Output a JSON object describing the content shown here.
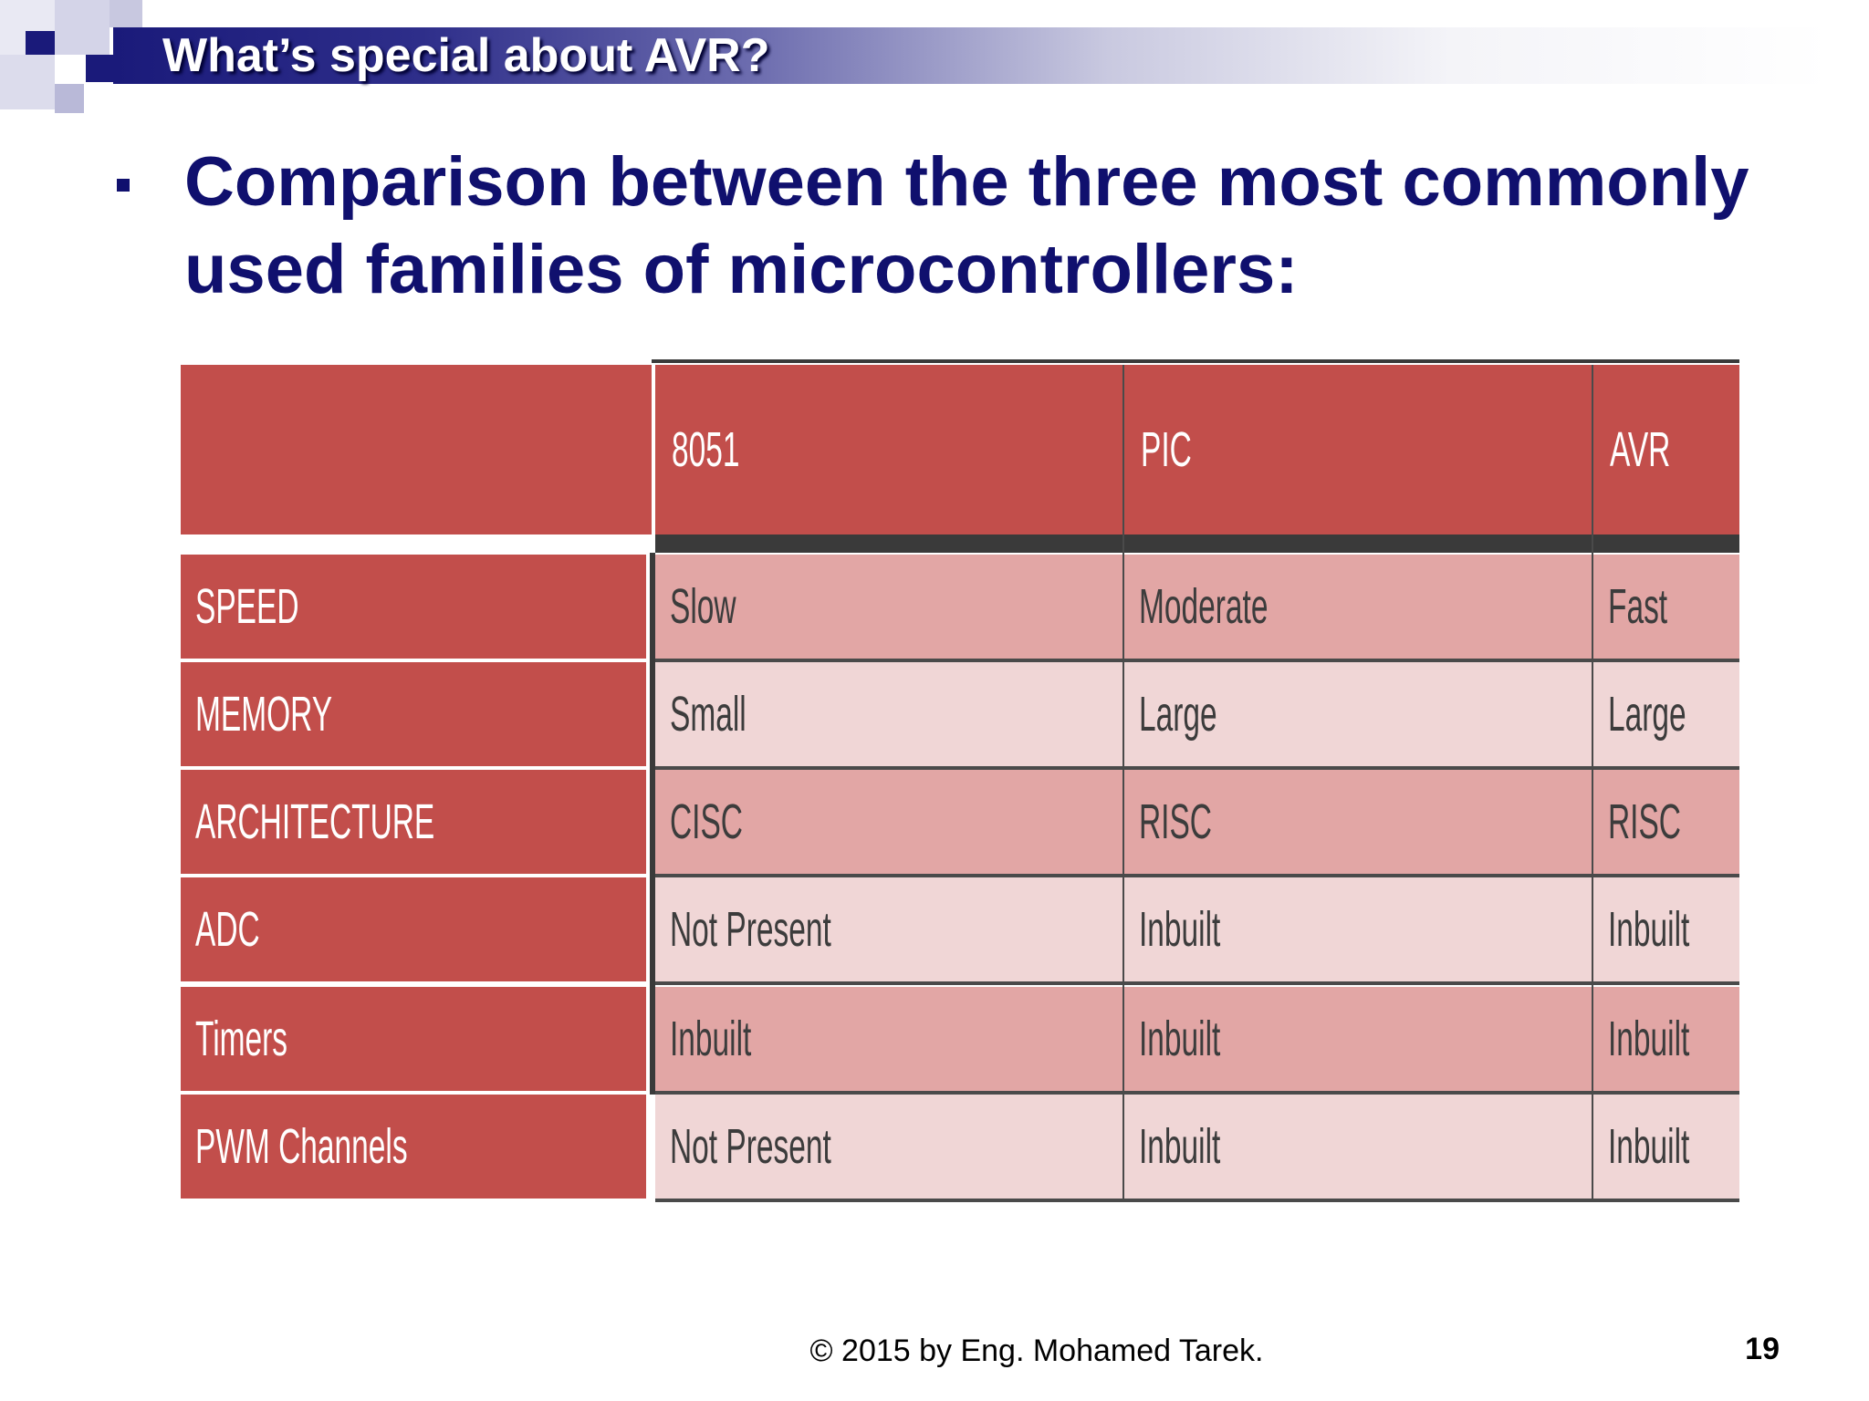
{
  "slide": {
    "title": "What’s special about AVR?",
    "bullet": "Comparison between the three most commonly used families of microcontrollers:",
    "footer": "© 2015 by Eng. Mohamed Tarek.",
    "page_number": "19"
  },
  "table": {
    "headers": [
      "",
      "8051",
      "PIC",
      "AVR"
    ],
    "rows": [
      {
        "label": "SPEED",
        "values": [
          "Slow",
          "Moderate",
          "Fast"
        ]
      },
      {
        "label": "MEMORY",
        "values": [
          "Small",
          "Large",
          "Large"
        ]
      },
      {
        "label": "ARCHITECTURE",
        "values": [
          "CISC",
          "RISC",
          "RISC"
        ]
      },
      {
        "label": "ADC",
        "values": [
          "Not Present",
          "Inbuilt",
          "Inbuilt"
        ]
      },
      {
        "label": "Timers",
        "values": [
          "Inbuilt",
          "Inbuilt",
          "Inbuilt"
        ]
      },
      {
        "label": "PWM Channels",
        "values": [
          "Not Present",
          "Inbuilt",
          "Inbuilt"
        ]
      }
    ]
  },
  "colors": {
    "title_bar": "#1a1a7a",
    "bullet_text": "#10106e",
    "header_red": "#c24e4b",
    "row_dark": "#e2a6a5",
    "row_light": "#f0d6d6"
  }
}
